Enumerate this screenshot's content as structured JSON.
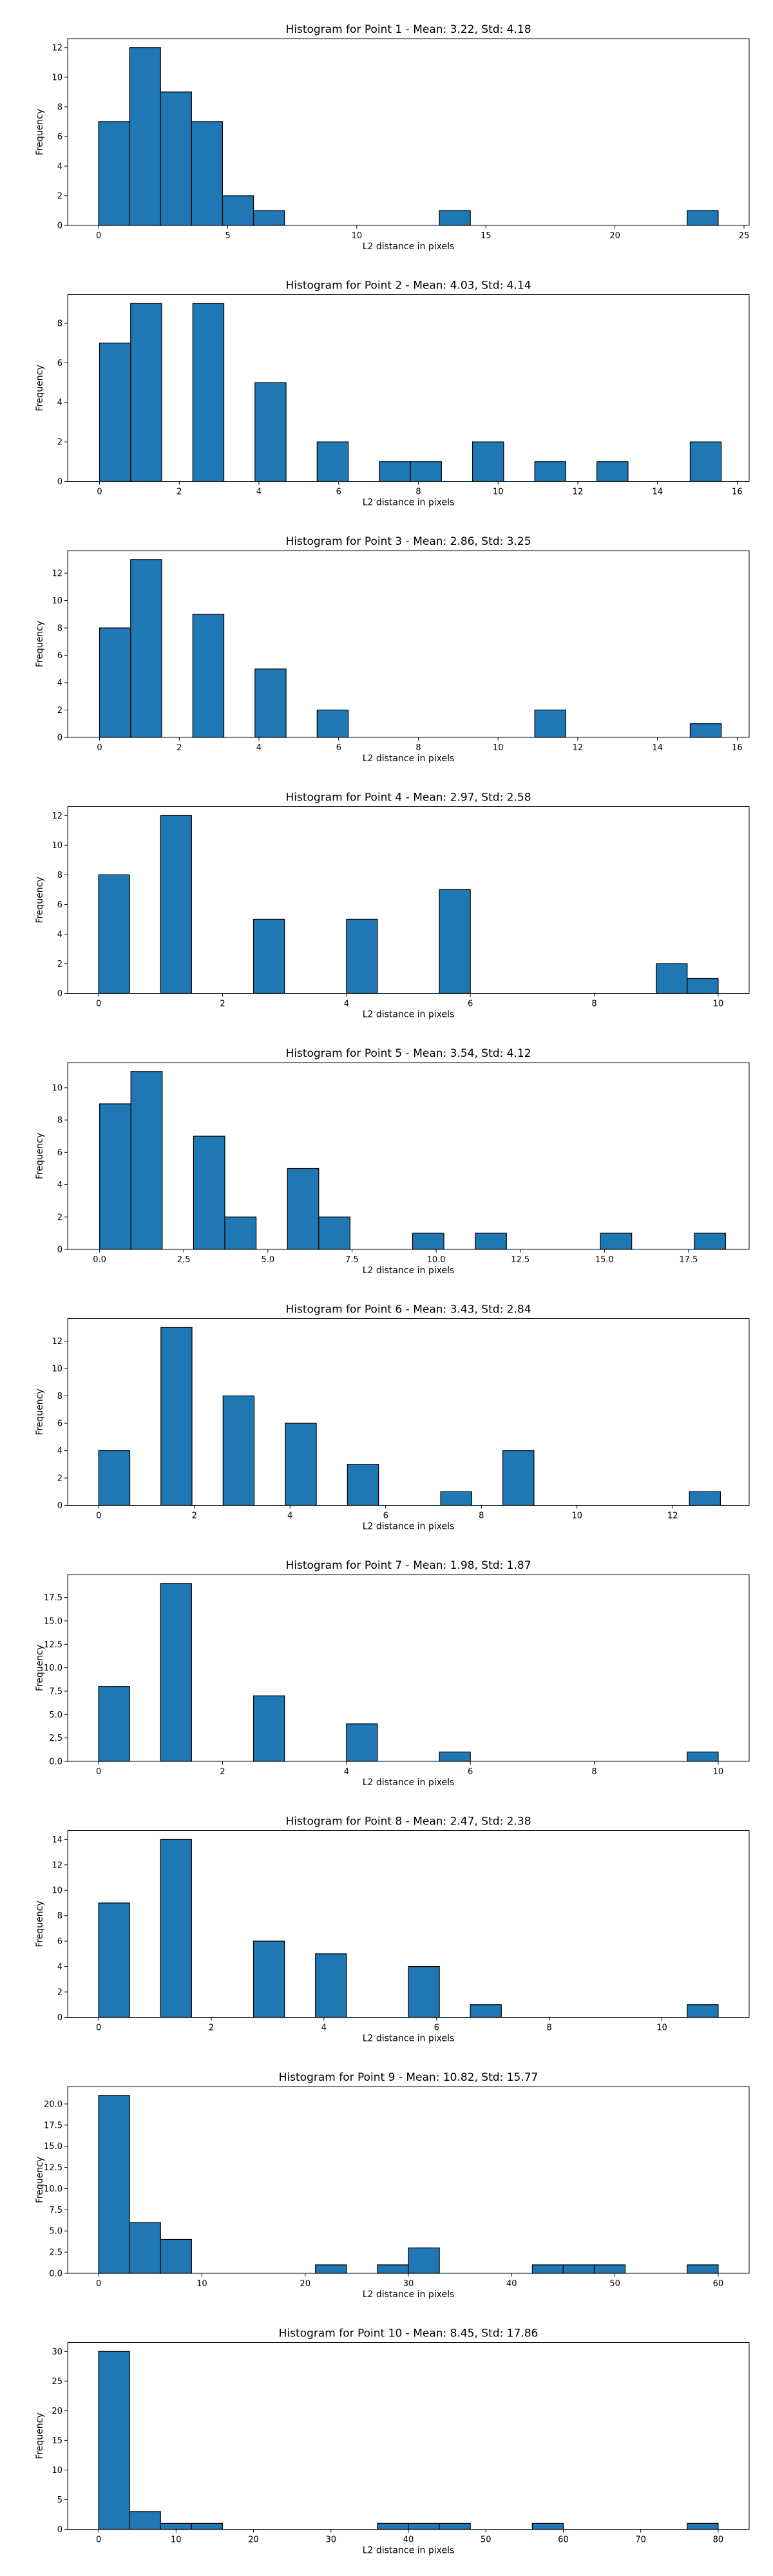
{
  "bar_color": "#1f77b4",
  "chart_data": [
    {
      "type": "bar",
      "title": "Histogram for Point 1 - Mean: 3.22, Std: 4.18",
      "xlabel": "L2 distance in pixels",
      "ylabel": "Frequency",
      "xlim": [
        -1.2,
        25.2
      ],
      "ylim": [
        0,
        12.6
      ],
      "xticks": [
        0,
        5,
        10,
        15,
        20,
        25
      ],
      "xtick_labels": [
        "0",
        "5",
        "10",
        "15",
        "20",
        "25"
      ],
      "yticks": [
        0,
        2,
        4,
        6,
        8,
        10,
        12
      ],
      "ytick_labels": [
        "0",
        "2",
        "4",
        "6",
        "8",
        "10",
        "12"
      ],
      "bins": [
        {
          "x0": 0.0,
          "x1": 1.2,
          "count": 7
        },
        {
          "x0": 1.2,
          "x1": 2.4,
          "count": 12
        },
        {
          "x0": 2.4,
          "x1": 3.6,
          "count": 9
        },
        {
          "x0": 3.6,
          "x1": 4.8,
          "count": 7
        },
        {
          "x0": 4.8,
          "x1": 6.0,
          "count": 2
        },
        {
          "x0": 6.0,
          "x1": 7.2,
          "count": 1
        },
        {
          "x0": 13.2,
          "x1": 14.4,
          "count": 1
        },
        {
          "x0": 22.8,
          "x1": 24.0,
          "count": 1
        }
      ]
    },
    {
      "type": "bar",
      "title": "Histogram for Point 2 - Mean: 4.03, Std: 4.14",
      "xlabel": "L2 distance in pixels",
      "ylabel": "Frequency",
      "xlim": [
        -0.8,
        16.3
      ],
      "ylim": [
        0,
        9.45
      ],
      "xticks": [
        0,
        2,
        4,
        6,
        8,
        10,
        12,
        14,
        16
      ],
      "xtick_labels": [
        "0",
        "2",
        "4",
        "6",
        "8",
        "10",
        "12",
        "14",
        "16"
      ],
      "yticks": [
        0,
        2,
        4,
        6,
        8
      ],
      "ytick_labels": [
        "0",
        "2",
        "4",
        "6",
        "8"
      ],
      "bins": [
        {
          "x0": 0.0,
          "x1": 0.78,
          "count": 7
        },
        {
          "x0": 0.78,
          "x1": 1.56,
          "count": 9
        },
        {
          "x0": 2.34,
          "x1": 3.12,
          "count": 9
        },
        {
          "x0": 3.9,
          "x1": 4.68,
          "count": 5
        },
        {
          "x0": 5.46,
          "x1": 6.24,
          "count": 2
        },
        {
          "x0": 7.02,
          "x1": 7.8,
          "count": 1
        },
        {
          "x0": 7.8,
          "x1": 8.58,
          "count": 1
        },
        {
          "x0": 9.36,
          "x1": 10.14,
          "count": 2
        },
        {
          "x0": 10.92,
          "x1": 11.7,
          "count": 1
        },
        {
          "x0": 12.48,
          "x1": 13.26,
          "count": 1
        },
        {
          "x0": 14.82,
          "x1": 15.6,
          "count": 2
        }
      ]
    },
    {
      "type": "bar",
      "title": "Histogram for Point 3 - Mean: 2.86, Std: 3.25",
      "xlabel": "L2 distance in pixels",
      "ylabel": "Frequency",
      "xlim": [
        -0.8,
        16.3
      ],
      "ylim": [
        0,
        13.65
      ],
      "xticks": [
        0,
        2,
        4,
        6,
        8,
        10,
        12,
        14,
        16
      ],
      "xtick_labels": [
        "0",
        "2",
        "4",
        "6",
        "8",
        "10",
        "12",
        "14",
        "16"
      ],
      "yticks": [
        0,
        2,
        4,
        6,
        8,
        10,
        12
      ],
      "ytick_labels": [
        "0",
        "2",
        "4",
        "6",
        "8",
        "10",
        "12"
      ],
      "bins": [
        {
          "x0": 0.0,
          "x1": 0.78,
          "count": 8
        },
        {
          "x0": 0.78,
          "x1": 1.56,
          "count": 13
        },
        {
          "x0": 2.34,
          "x1": 3.12,
          "count": 9
        },
        {
          "x0": 3.9,
          "x1": 4.68,
          "count": 5
        },
        {
          "x0": 5.46,
          "x1": 6.24,
          "count": 2
        },
        {
          "x0": 10.92,
          "x1": 11.7,
          "count": 2
        },
        {
          "x0": 14.82,
          "x1": 15.6,
          "count": 1
        }
      ]
    },
    {
      "type": "bar",
      "title": "Histogram for Point 4 - Mean: 2.97, Std: 2.58",
      "xlabel": "L2 distance in pixels",
      "ylabel": "Frequency",
      "xlim": [
        -0.5,
        10.5
      ],
      "ylim": [
        0,
        12.6
      ],
      "xticks": [
        0,
        2,
        4,
        6,
        8,
        10
      ],
      "xtick_labels": [
        "0",
        "2",
        "4",
        "6",
        "8",
        "10"
      ],
      "yticks": [
        0,
        2,
        4,
        6,
        8,
        10,
        12
      ],
      "ytick_labels": [
        "0",
        "2",
        "4",
        "6",
        "8",
        "10",
        "12"
      ],
      "bins": [
        {
          "x0": 0.0,
          "x1": 0.5,
          "count": 8
        },
        {
          "x0": 1.0,
          "x1": 1.5,
          "count": 12
        },
        {
          "x0": 2.5,
          "x1": 3.0,
          "count": 5
        },
        {
          "x0": 4.0,
          "x1": 4.5,
          "count": 5
        },
        {
          "x0": 5.5,
          "x1": 6.0,
          "count": 7
        },
        {
          "x0": 9.0,
          "x1": 9.5,
          "count": 2
        },
        {
          "x0": 9.5,
          "x1": 10.0,
          "count": 1
        }
      ]
    },
    {
      "type": "bar",
      "title": "Histogram for Point 5 - Mean: 3.54, Std: 4.12",
      "xlabel": "L2 distance in pixels",
      "ylabel": "Frequency",
      "xlim": [
        -0.95,
        19.3
      ],
      "ylim": [
        0,
        11.55
      ],
      "xticks": [
        0.0,
        2.5,
        5.0,
        7.5,
        10.0,
        12.5,
        15.0,
        17.5
      ],
      "xtick_labels": [
        "0.0",
        "2.5",
        "5.0",
        "7.5",
        "10.0",
        "12.5",
        "15.0",
        "17.5"
      ],
      "yticks": [
        0,
        2,
        4,
        6,
        8,
        10
      ],
      "ytick_labels": [
        "0",
        "2",
        "4",
        "6",
        "8",
        "10"
      ],
      "bins": [
        {
          "x0": 0.0,
          "x1": 0.93,
          "count": 9
        },
        {
          "x0": 0.93,
          "x1": 1.86,
          "count": 11
        },
        {
          "x0": 2.79,
          "x1": 3.72,
          "count": 7
        },
        {
          "x0": 3.72,
          "x1": 4.65,
          "count": 2
        },
        {
          "x0": 5.58,
          "x1": 6.51,
          "count": 5
        },
        {
          "x0": 6.51,
          "x1": 7.44,
          "count": 2
        },
        {
          "x0": 9.3,
          "x1": 10.23,
          "count": 1
        },
        {
          "x0": 11.16,
          "x1": 12.09,
          "count": 1
        },
        {
          "x0": 14.88,
          "x1": 15.81,
          "count": 1
        },
        {
          "x0": 17.67,
          "x1": 18.6,
          "count": 1
        }
      ]
    },
    {
      "type": "bar",
      "title": "Histogram for Point 6 - Mean: 3.43, Std: 2.84",
      "xlabel": "L2 distance in pixels",
      "ylabel": "Frequency",
      "xlim": [
        -0.65,
        13.6
      ],
      "ylim": [
        0,
        13.65
      ],
      "xticks": [
        0,
        2,
        4,
        6,
        8,
        10,
        12
      ],
      "xtick_labels": [
        "0",
        "2",
        "4",
        "6",
        "8",
        "10",
        "12"
      ],
      "yticks": [
        0,
        2,
        4,
        6,
        8,
        10,
        12
      ],
      "ytick_labels": [
        "0",
        "2",
        "4",
        "6",
        "8",
        "10",
        "12"
      ],
      "bins": [
        {
          "x0": 0.0,
          "x1": 0.65,
          "count": 4
        },
        {
          "x0": 1.3,
          "x1": 1.95,
          "count": 13
        },
        {
          "x0": 2.6,
          "x1": 3.25,
          "count": 8
        },
        {
          "x0": 3.9,
          "x1": 4.55,
          "count": 6
        },
        {
          "x0": 5.2,
          "x1": 5.85,
          "count": 3
        },
        {
          "x0": 7.15,
          "x1": 7.8,
          "count": 1
        },
        {
          "x0": 8.45,
          "x1": 9.1,
          "count": 4
        },
        {
          "x0": 12.35,
          "x1": 13.0,
          "count": 1
        }
      ]
    },
    {
      "type": "bar",
      "title": "Histogram for Point 7 - Mean: 1.98, Std: 1.87",
      "xlabel": "L2 distance in pixels",
      "ylabel": "Frequency",
      "xlim": [
        -0.5,
        10.5
      ],
      "ylim": [
        0,
        19.95
      ],
      "xticks": [
        0,
        2,
        4,
        6,
        8,
        10
      ],
      "xtick_labels": [
        "0",
        "2",
        "4",
        "6",
        "8",
        "10"
      ],
      "yticks": [
        0.0,
        2.5,
        5.0,
        7.5,
        10.0,
        12.5,
        15.0,
        17.5
      ],
      "ytick_labels": [
        "0.0",
        "2.5",
        "5.0",
        "7.5",
        "10.0",
        "12.5",
        "15.0",
        "17.5"
      ],
      "bins": [
        {
          "x0": 0.0,
          "x1": 0.5,
          "count": 8
        },
        {
          "x0": 1.0,
          "x1": 1.5,
          "count": 19
        },
        {
          "x0": 2.5,
          "x1": 3.0,
          "count": 7
        },
        {
          "x0": 4.0,
          "x1": 4.5,
          "count": 4
        },
        {
          "x0": 5.5,
          "x1": 6.0,
          "count": 1
        },
        {
          "x0": 9.5,
          "x1": 10.0,
          "count": 1
        }
      ]
    },
    {
      "type": "bar",
      "title": "Histogram for Point 8 - Mean: 2.47, Std: 2.38",
      "xlabel": "L2 distance in pixels",
      "ylabel": "Frequency",
      "xlim": [
        -0.55,
        11.55
      ],
      "ylim": [
        0,
        14.7
      ],
      "xticks": [
        0,
        2,
        4,
        6,
        8,
        10
      ],
      "xtick_labels": [
        "0",
        "2",
        "4",
        "6",
        "8",
        "10"
      ],
      "yticks": [
        0,
        2,
        4,
        6,
        8,
        10,
        12,
        14
      ],
      "ytick_labels": [
        "0",
        "2",
        "4",
        "6",
        "8",
        "10",
        "12",
        "14"
      ],
      "bins": [
        {
          "x0": 0.0,
          "x1": 0.55,
          "count": 9
        },
        {
          "x0": 1.1,
          "x1": 1.65,
          "count": 14
        },
        {
          "x0": 2.75,
          "x1": 3.3,
          "count": 6
        },
        {
          "x0": 3.85,
          "x1": 4.4,
          "count": 5
        },
        {
          "x0": 5.5,
          "x1": 6.05,
          "count": 4
        },
        {
          "x0": 6.6,
          "x1": 7.15,
          "count": 1
        },
        {
          "x0": 10.45,
          "x1": 11.0,
          "count": 1
        }
      ]
    },
    {
      "type": "bar",
      "title": "Histogram for Point 9 - Mean: 10.82, Std: 15.77",
      "xlabel": "L2 distance in pixels",
      "ylabel": "Frequency",
      "xlim": [
        -3.0,
        63.0
      ],
      "ylim": [
        0,
        22.05
      ],
      "xticks": [
        0,
        10,
        20,
        30,
        40,
        50,
        60
      ],
      "xtick_labels": [
        "0",
        "10",
        "20",
        "30",
        "40",
        "50",
        "60"
      ],
      "yticks": [
        0.0,
        2.5,
        5.0,
        7.5,
        10.0,
        12.5,
        15.0,
        17.5,
        20.0
      ],
      "ytick_labels": [
        "0.0",
        "2.5",
        "5.0",
        "7.5",
        "10.0",
        "12.5",
        "15.0",
        "17.5",
        "20.0"
      ],
      "bins": [
        {
          "x0": 0.0,
          "x1": 3.0,
          "count": 21
        },
        {
          "x0": 3.0,
          "x1": 6.0,
          "count": 6
        },
        {
          "x0": 6.0,
          "x1": 9.0,
          "count": 4
        },
        {
          "x0": 21.0,
          "x1": 24.0,
          "count": 1
        },
        {
          "x0": 27.0,
          "x1": 30.0,
          "count": 1
        },
        {
          "x0": 30.0,
          "x1": 33.0,
          "count": 3
        },
        {
          "x0": 42.0,
          "x1": 45.0,
          "count": 1
        },
        {
          "x0": 45.0,
          "x1": 48.0,
          "count": 1
        },
        {
          "x0": 48.0,
          "x1": 51.0,
          "count": 1
        },
        {
          "x0": 57.0,
          "x1": 60.0,
          "count": 1
        }
      ]
    },
    {
      "type": "bar",
      "title": "Histogram for Point 10 - Mean: 8.45, Std: 17.86",
      "xlabel": "L2 distance in pixels",
      "ylabel": "Frequency",
      "xlim": [
        -4.0,
        84.0
      ],
      "ylim": [
        0,
        31.5
      ],
      "xticks": [
        0,
        10,
        20,
        30,
        40,
        50,
        60,
        70,
        80
      ],
      "xtick_labels": [
        "0",
        "10",
        "20",
        "30",
        "40",
        "50",
        "60",
        "70",
        "80"
      ],
      "yticks": [
        0,
        5,
        10,
        15,
        20,
        25,
        30
      ],
      "ytick_labels": [
        "0",
        "5",
        "10",
        "15",
        "20",
        "25",
        "30"
      ],
      "bins": [
        {
          "x0": 0.0,
          "x1": 4.0,
          "count": 30
        },
        {
          "x0": 4.0,
          "x1": 8.0,
          "count": 3
        },
        {
          "x0": 8.0,
          "x1": 12.0,
          "count": 1
        },
        {
          "x0": 12.0,
          "x1": 16.0,
          "count": 1
        },
        {
          "x0": 36.0,
          "x1": 40.0,
          "count": 1
        },
        {
          "x0": 40.0,
          "x1": 44.0,
          "count": 1
        },
        {
          "x0": 44.0,
          "x1": 48.0,
          "count": 1
        },
        {
          "x0": 56.0,
          "x1": 60.0,
          "count": 1
        },
        {
          "x0": 76.0,
          "x1": 80.0,
          "count": 1
        }
      ]
    }
  ]
}
